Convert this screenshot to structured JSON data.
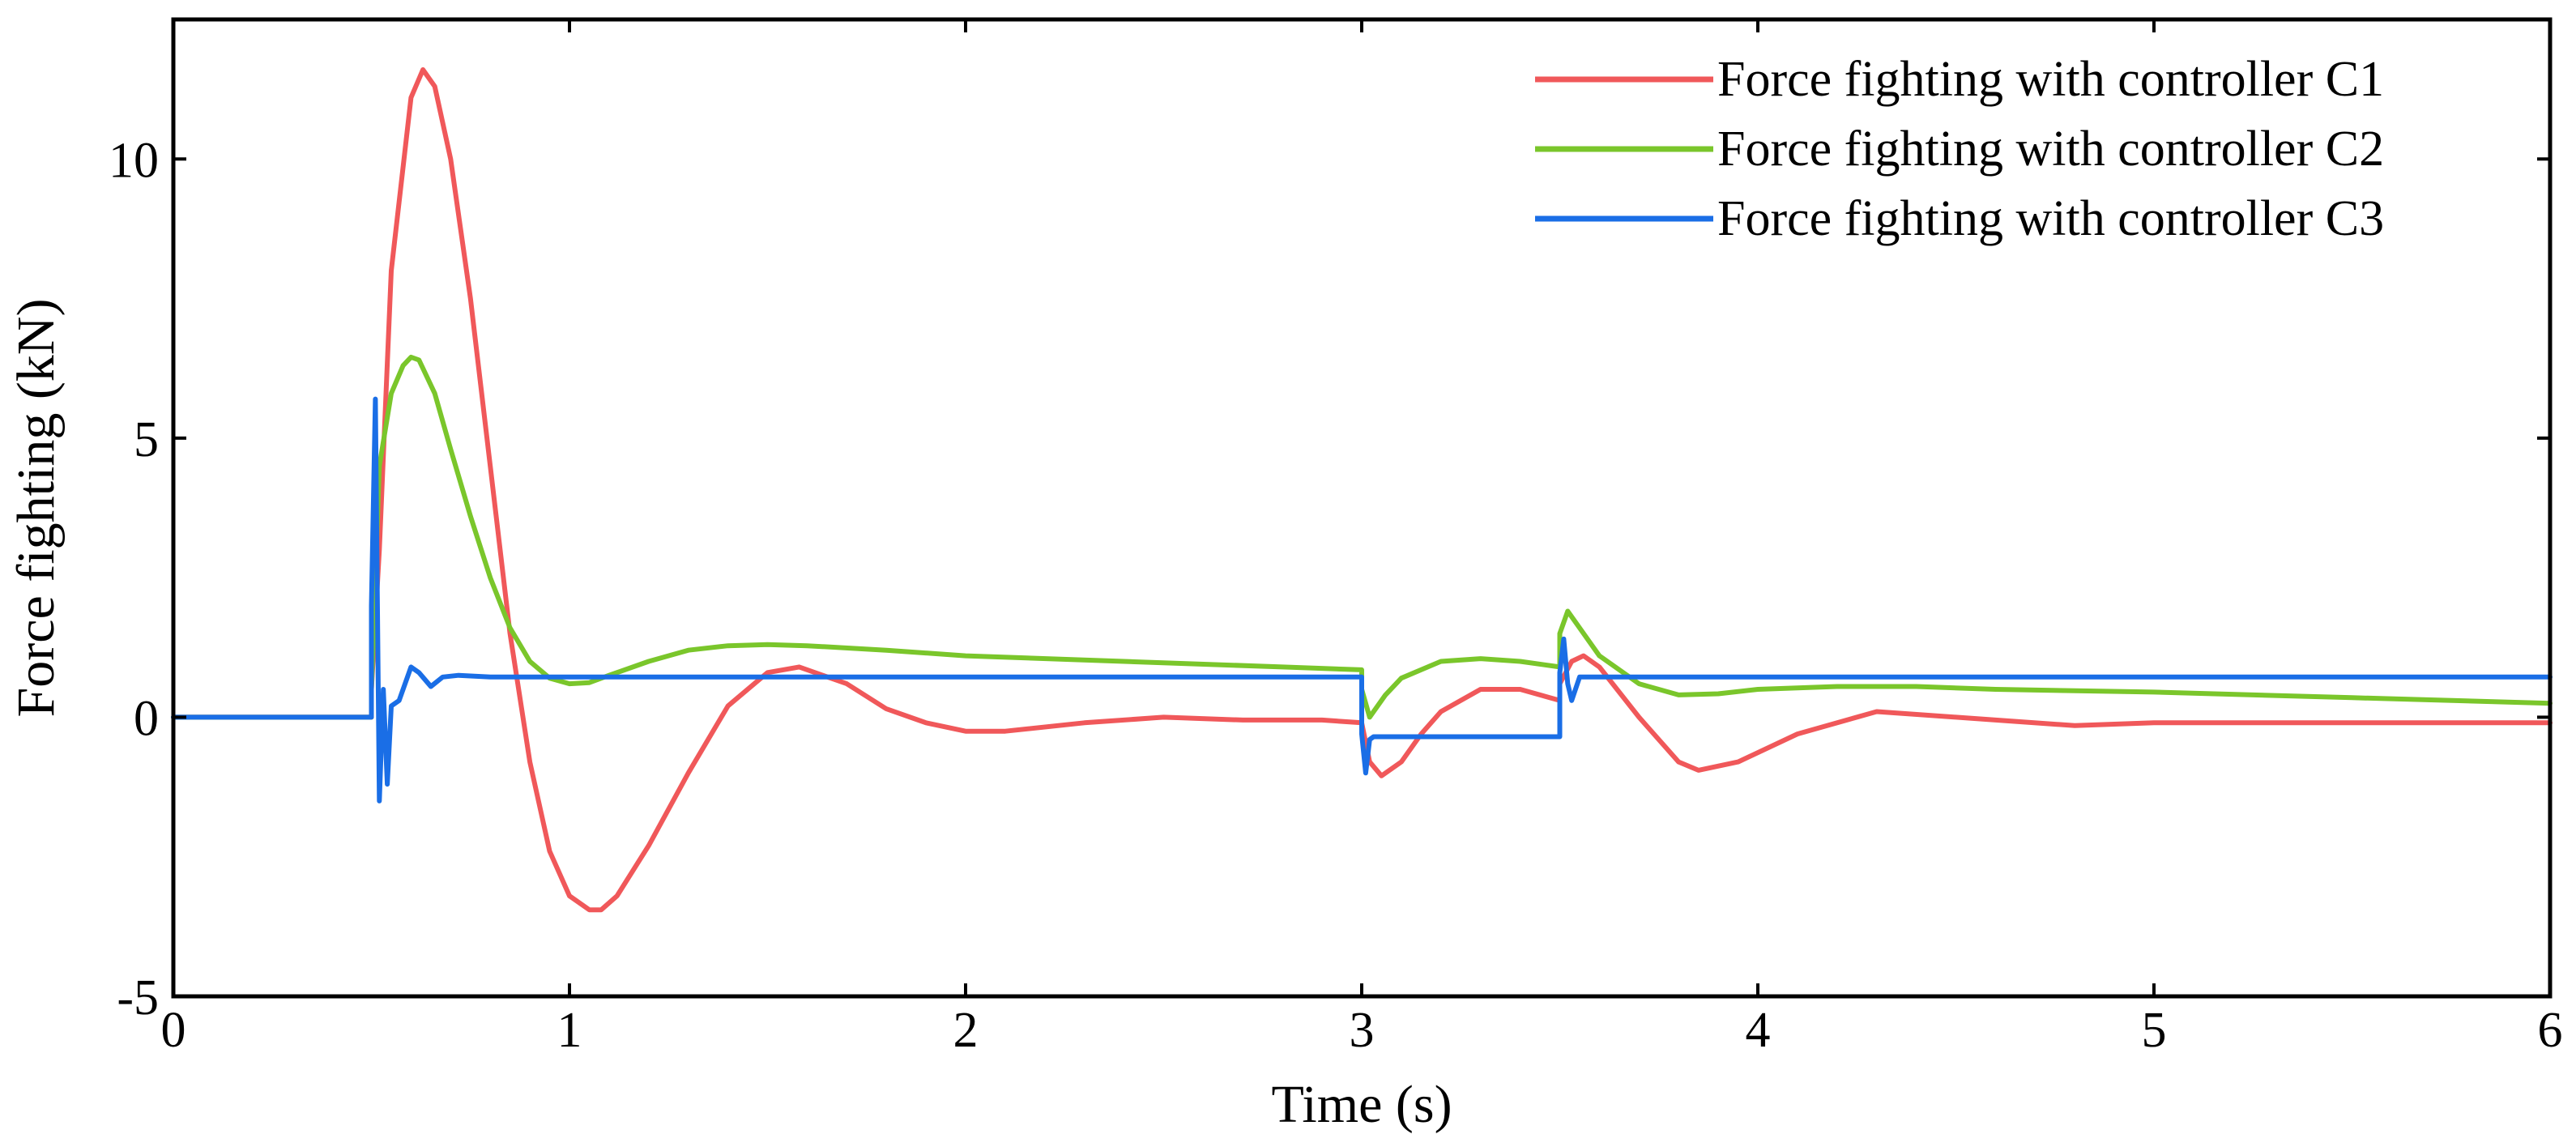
{
  "chart_data": {
    "type": "line",
    "title": "",
    "xlabel": "Time (s)",
    "ylabel": "Force fighting (kN)",
    "xlim": [
      0,
      6
    ],
    "ylim": [
      -5,
      12.5
    ],
    "xticks": [
      0,
      1,
      2,
      3,
      4,
      5,
      6
    ],
    "xtick_labels": [
      "0",
      "1",
      "2",
      "3",
      "4",
      "5",
      "6"
    ],
    "yticks": [
      -5,
      0,
      5,
      10
    ],
    "ytick_labels": [
      "-5",
      "0",
      "5",
      "10"
    ],
    "grid": false,
    "legend_position": "top-right",
    "series": [
      {
        "name": "Force fighting with controller C1",
        "color": "#f0585a",
        "x": [
          0,
          0.5,
          0.5,
          0.52,
          0.55,
          0.6,
          0.63,
          0.66,
          0.7,
          0.75,
          0.8,
          0.85,
          0.9,
          0.95,
          1.0,
          1.05,
          1.08,
          1.12,
          1.2,
          1.3,
          1.4,
          1.5,
          1.58,
          1.7,
          1.8,
          1.9,
          2.0,
          2.1,
          2.3,
          2.5,
          2.7,
          2.9,
          3.0,
          3.02,
          3.05,
          3.1,
          3.15,
          3.2,
          3.3,
          3.4,
          3.5,
          3.5,
          3.53,
          3.56,
          3.6,
          3.7,
          3.8,
          3.85,
          3.95,
          4.1,
          4.3,
          4.5,
          4.8,
          5.0,
          5.5,
          6.0
        ],
        "values": [
          0,
          0,
          0.5,
          3.0,
          8.0,
          11.1,
          11.6,
          11.3,
          10.0,
          7.5,
          4.5,
          1.5,
          -0.8,
          -2.4,
          -3.2,
          -3.45,
          -3.45,
          -3.2,
          -2.3,
          -1.0,
          0.2,
          0.8,
          0.9,
          0.6,
          0.15,
          -0.1,
          -0.25,
          -0.25,
          -0.1,
          0.0,
          -0.05,
          -0.05,
          -0.1,
          -0.8,
          -1.05,
          -0.8,
          -0.3,
          0.1,
          0.5,
          0.5,
          0.3,
          0.6,
          1.0,
          1.1,
          0.9,
          0.0,
          -0.8,
          -0.95,
          -0.8,
          -0.3,
          0.1,
          0.0,
          -0.15,
          -0.1,
          -0.1,
          -0.1
        ]
      },
      {
        "name": "Force fighting with controller C2",
        "color": "#7ac62b",
        "x": [
          0,
          0.5,
          0.5,
          0.52,
          0.55,
          0.58,
          0.6,
          0.62,
          0.66,
          0.7,
          0.75,
          0.8,
          0.85,
          0.9,
          0.95,
          1.0,
          1.05,
          1.1,
          1.2,
          1.3,
          1.4,
          1.5,
          1.6,
          1.8,
          2.0,
          2.4,
          2.8,
          3.0,
          3.0,
          3.02,
          3.06,
          3.1,
          3.2,
          3.3,
          3.4,
          3.5,
          3.5,
          3.52,
          3.55,
          3.6,
          3.7,
          3.8,
          3.9,
          4.0,
          4.2,
          4.4,
          4.6,
          5.0,
          5.5,
          6.0
        ],
        "values": [
          0,
          0,
          0.5,
          4.5,
          5.8,
          6.3,
          6.45,
          6.4,
          5.8,
          4.8,
          3.6,
          2.5,
          1.6,
          1.0,
          0.7,
          0.6,
          0.62,
          0.75,
          1.0,
          1.2,
          1.28,
          1.3,
          1.28,
          1.2,
          1.1,
          1.0,
          0.9,
          0.85,
          0.5,
          0.0,
          0.4,
          0.7,
          1.0,
          1.05,
          1.0,
          0.9,
          1.5,
          1.9,
          1.6,
          1.1,
          0.6,
          0.4,
          0.42,
          0.5,
          0.55,
          0.55,
          0.5,
          0.45,
          0.35,
          0.25
        ]
      },
      {
        "name": "Force fighting with controller C3",
        "color": "#1a6ee6",
        "x": [
          0,
          0.5,
          0.5,
          0.51,
          0.52,
          0.53,
          0.54,
          0.55,
          0.57,
          0.6,
          0.62,
          0.65,
          0.68,
          0.72,
          0.8,
          1.0,
          2.0,
          3.0,
          3.0,
          3.01,
          3.02,
          3.03,
          3.05,
          3.1,
          3.5,
          3.5,
          3.51,
          3.52,
          3.53,
          3.55,
          3.6,
          4.0,
          5.0,
          6.0
        ],
        "values": [
          0,
          0,
          2.0,
          5.7,
          -1.5,
          0.5,
          -1.2,
          0.2,
          0.3,
          0.9,
          0.8,
          0.55,
          0.72,
          0.75,
          0.72,
          0.72,
          0.72,
          0.72,
          -0.3,
          -1.0,
          -0.4,
          -0.35,
          -0.35,
          -0.35,
          -0.35,
          0.8,
          1.4,
          0.6,
          0.3,
          0.72,
          0.72,
          0.72,
          0.72,
          0.72
        ]
      }
    ]
  }
}
